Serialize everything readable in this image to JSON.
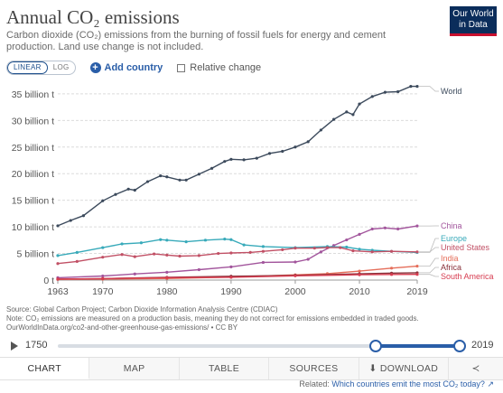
{
  "header": {
    "title": "Annual CO₂ emissions",
    "subtitle": "Carbon dioxide (CO₂) emissions from the burning of fossil fuels for energy and cement production. Land use change is not included.",
    "logo_line1": "Our World",
    "logo_line2": "in Data"
  },
  "controls": {
    "linear_label": "LINEAR",
    "log_label": "LOG",
    "add_country_label": "Add country",
    "relative_change_label": "Relative change"
  },
  "chart_data": {
    "type": "line",
    "title": "Annual CO₂ emissions",
    "xlim": [
      1963,
      2019
    ],
    "ylim": [
      0,
      36
    ],
    "x_ticks": [
      1963,
      1970,
      1980,
      1990,
      2000,
      2010,
      2019
    ],
    "x_tick_labels": [
      "1963",
      "1970",
      "1980",
      "1990",
      "2000",
      "2010",
      "2019"
    ],
    "y_ticks": [
      0,
      5,
      10,
      15,
      20,
      25,
      30,
      35
    ],
    "y_tick_labels": [
      "0 t",
      "5 billion t",
      "10 billion t",
      "15 billion t",
      "20 billion t",
      "25 billion t",
      "30 billion t",
      "35 billion t"
    ],
    "grid": "horizontal-dashed",
    "series": [
      {
        "name": "World",
        "color": "#3c4a5c",
        "x": [
          1963,
          1965,
          1967,
          1970,
          1972,
          1974,
          1975,
          1977,
          1979,
          1980,
          1982,
          1983,
          1985,
          1987,
          1989,
          1990,
          1992,
          1994,
          1996,
          1998,
          2000,
          2002,
          2004,
          2006,
          2008,
          2009,
          2010,
          2012,
          2014,
          2016,
          2018,
          2019
        ],
        "y": [
          10.2,
          11.2,
          12.1,
          14.9,
          16.1,
          17.1,
          16.9,
          18.5,
          19.6,
          19.4,
          18.8,
          18.8,
          19.9,
          21.0,
          22.3,
          22.7,
          22.6,
          22.9,
          23.8,
          24.2,
          25.0,
          26.0,
          28.2,
          30.2,
          31.6,
          31.1,
          33.1,
          34.5,
          35.3,
          35.4,
          36.4,
          36.4
        ]
      },
      {
        "name": "China",
        "color": "#a2559c",
        "x": [
          1963,
          1970,
          1975,
          1980,
          1985,
          1990,
          1995,
          2000,
          2002,
          2004,
          2006,
          2008,
          2010,
          2012,
          2014,
          2016,
          2019
        ],
        "y": [
          0.44,
          0.77,
          1.15,
          1.47,
          1.95,
          2.48,
          3.32,
          3.4,
          3.9,
          5.3,
          6.5,
          7.55,
          8.6,
          9.6,
          9.8,
          9.6,
          10.17
        ]
      },
      {
        "name": "Europe",
        "color": "#38aaba",
        "x": [
          1963,
          1966,
          1970,
          1973,
          1976,
          1979,
          1980,
          1983,
          1986,
          1989,
          1990,
          1992,
          1995,
          2000,
          2005,
          2008,
          2010,
          2012,
          2015,
          2019
        ],
        "y": [
          4.6,
          5.2,
          6.1,
          6.8,
          7.0,
          7.6,
          7.5,
          7.2,
          7.5,
          7.7,
          7.6,
          6.6,
          6.3,
          6.1,
          6.3,
          6.2,
          5.8,
          5.6,
          5.4,
          5.2
        ]
      },
      {
        "name": "United States",
        "color": "#c15065",
        "x": [
          1963,
          1966,
          1970,
          1973,
          1975,
          1978,
          1980,
          1982,
          1985,
          1988,
          1990,
          1993,
          1995,
          1998,
          2000,
          2003,
          2005,
          2007,
          2009,
          2012,
          2015,
          2019
        ],
        "y": [
          3.1,
          3.5,
          4.3,
          4.8,
          4.4,
          4.9,
          4.7,
          4.5,
          4.6,
          5.0,
          5.1,
          5.2,
          5.4,
          5.7,
          6.0,
          6.0,
          6.1,
          6.1,
          5.5,
          5.3,
          5.4,
          5.3
        ]
      },
      {
        "name": "India",
        "color": "#e56e5a",
        "x": [
          1963,
          1970,
          1980,
          1990,
          2000,
          2005,
          2010,
          2015,
          2019
        ],
        "y": [
          0.12,
          0.18,
          0.29,
          0.58,
          0.98,
          1.21,
          1.68,
          2.24,
          2.62
        ]
      },
      {
        "name": "Africa",
        "color": "#883039",
        "x": [
          1963,
          1970,
          1980,
          1990,
          2000,
          2010,
          2015,
          2019
        ],
        "y": [
          0.18,
          0.27,
          0.52,
          0.72,
          0.89,
          1.18,
          1.3,
          1.37
        ]
      },
      {
        "name": "South America",
        "color": "#d73c50",
        "x": [
          1963,
          1970,
          1980,
          1990,
          2000,
          2010,
          2015,
          2019
        ],
        "y": [
          0.19,
          0.28,
          0.45,
          0.52,
          0.8,
          1.0,
          1.05,
          1.07
        ]
      }
    ]
  },
  "sources": {
    "line1": "Source: Global Carbon Project; Carbon Dioxide Information Analysis Centre (CDIAC)",
    "line2": "Note: CO₂ emissions are measured on a production basis, meaning they do not correct for emissions embedded in traded goods.",
    "line3": "OurWorldInData.org/co2-and-other-greenhouse-gas-emissions/ • CC BY"
  },
  "timeline": {
    "start_label": "1750",
    "end_label": "2019",
    "range_start_fraction": 0.79,
    "range_end_fraction": 1.0
  },
  "tabs": {
    "chart": "CHART",
    "map": "MAP",
    "table": "TABLE",
    "sources": "SOURCES",
    "download": "DOWNLOAD"
  },
  "related": {
    "prefix": "Related:",
    "link": "Which countries emit the most CO₂ today?"
  },
  "icons": {
    "play": "play-icon",
    "add": "plus-icon",
    "download": "download-icon",
    "share": "share-icon",
    "external": "external-link-icon"
  }
}
